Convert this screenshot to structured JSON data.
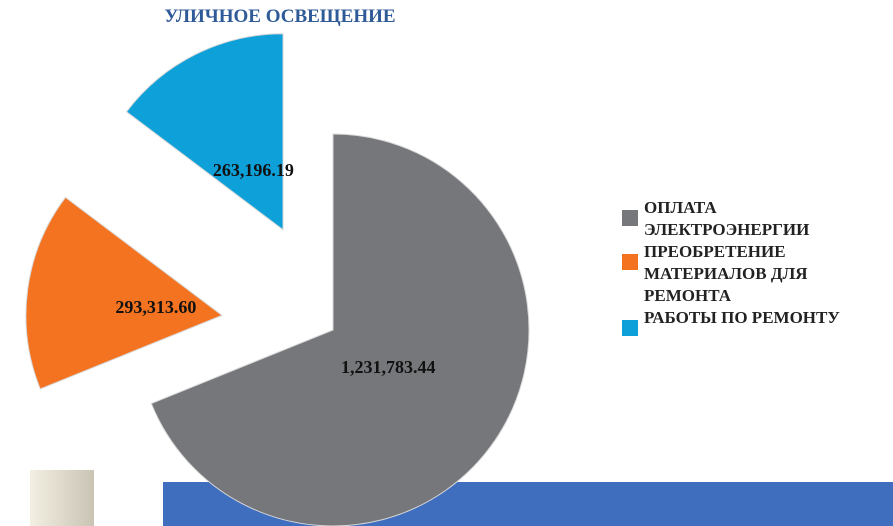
{
  "chart_data": {
    "type": "pie",
    "title": "УЛИЧНОЕ ОСВЕЩЕНИЕ",
    "categories": [
      "ОПЛАТА ЭЛЕКТРОЭНЕРГИИ",
      "ПРЕОБРЕТЕНИЕ МАТЕРИАЛОВ ДЛЯ РЕМОНТА",
      "РАБОТЫ ПО РЕМОНТУ"
    ],
    "values": [
      1231783.44,
      293313.6,
      263196.19
    ],
    "value_labels": [
      "1,231,783.44",
      "293,313.60",
      "263,196.19"
    ],
    "colors": [
      "#76777b",
      "#f47320",
      "#0ea0d8"
    ],
    "legend": "right"
  }
}
